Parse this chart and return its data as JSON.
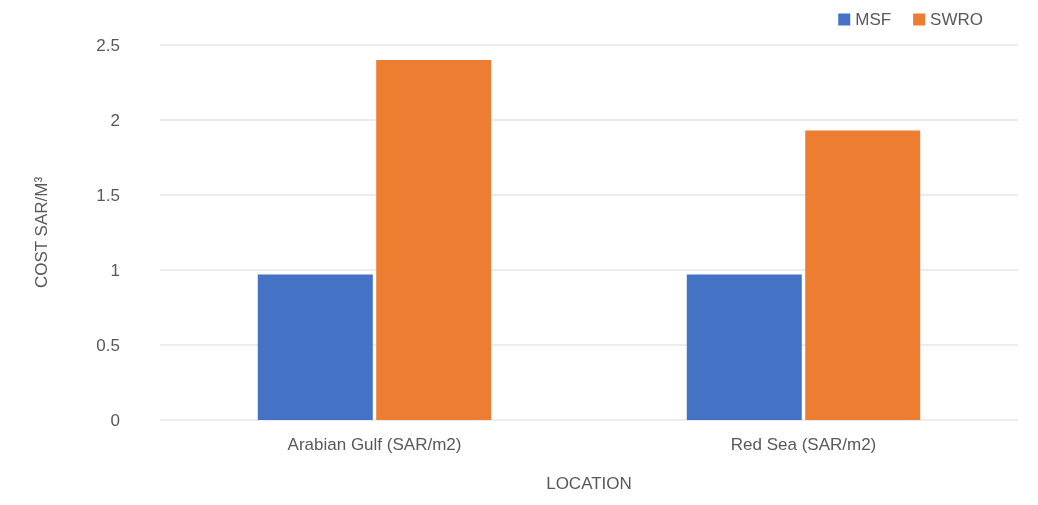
{
  "chart_data": {
    "type": "bar",
    "xlabel": "LOCATION",
    "ylabel": "COST SAR/M³",
    "categories": [
      "Arabian Gulf (SAR/m2)",
      "Red Sea (SAR/m2)"
    ],
    "series": [
      {
        "name": "MSF",
        "color": "#4472c4",
        "values": [
          0.97,
          0.97
        ]
      },
      {
        "name": "SWRO",
        "color": "#ed7d31",
        "values": [
          2.4,
          1.93
        ]
      }
    ],
    "ylim": [
      0,
      2.5
    ],
    "yticks": [
      0,
      0.5,
      1,
      1.5,
      2,
      2.5
    ],
    "grid": "y",
    "legend": "top right"
  }
}
